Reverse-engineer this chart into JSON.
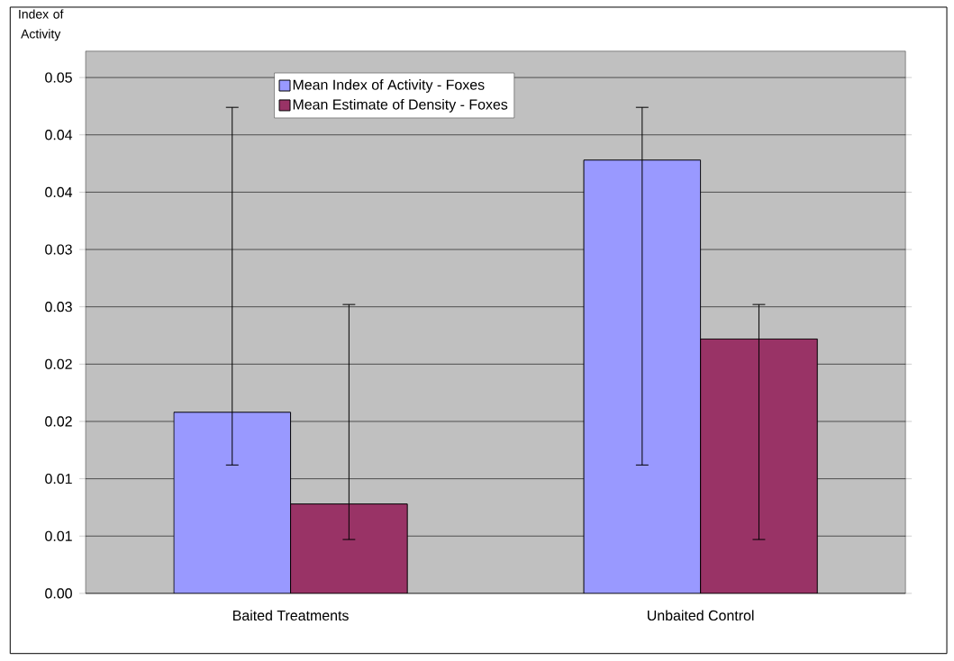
{
  "chart_data": {
    "type": "bar",
    "ylabel": "Index of Activity",
    "categories": [
      "Baited Treatments",
      "Unbaited Control"
    ],
    "series": [
      {
        "name": "Mean Index of Activity - Foxes",
        "color": "#9999ff",
        "values": [
          0.0158,
          0.0378
        ],
        "errors": [
          [
            0.0112,
            0.0424
          ],
          [
            0.0112,
            0.0424
          ]
        ]
      },
      {
        "name": "Mean Estimate of Density - Foxes",
        "color": "#993366",
        "values": [
          0.0078,
          0.0222
        ],
        "errors": [
          [
            0.0047,
            0.0252
          ],
          [
            0.0047,
            0.0252
          ]
        ]
      }
    ],
    "ylim": [
      0,
      0.0473
    ],
    "yticks": [
      {
        "value": 0,
        "label": "0.00"
      },
      {
        "value": 0.005,
        "label": "0.01"
      },
      {
        "value": 0.01,
        "label": "0.01"
      },
      {
        "value": 0.015,
        "label": "0.02"
      },
      {
        "value": 0.02,
        "label": "0.02"
      },
      {
        "value": 0.025,
        "label": "0.03"
      },
      {
        "value": 0.03,
        "label": "0.03"
      },
      {
        "value": 0.035,
        "label": "0.04"
      },
      {
        "value": 0.04,
        "label": "0.04"
      },
      {
        "value": 0.045,
        "label": "0.05"
      }
    ],
    "grid": "y",
    "legend": "top"
  }
}
